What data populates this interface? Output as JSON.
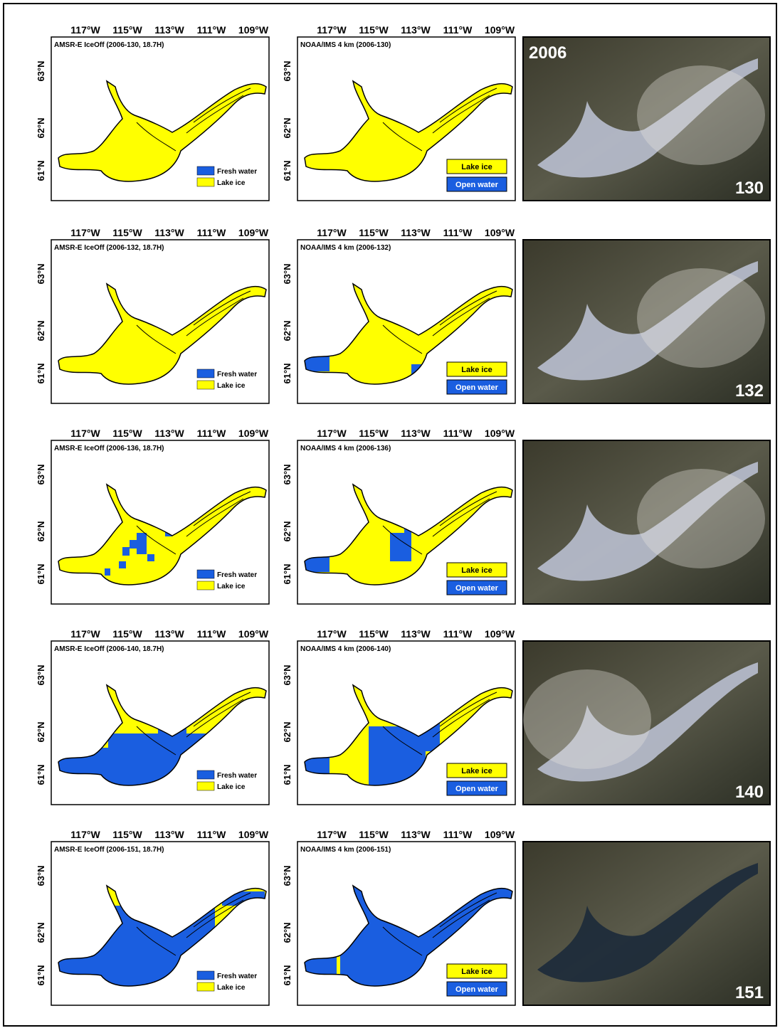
{
  "lon_ticks": [
    "117°W",
    "115°W",
    "113°W",
    "111°W",
    "109°W"
  ],
  "lat_ticks": [
    "63°N",
    "62°N",
    "61°N"
  ],
  "amsr_legend": [
    "Fresh water",
    "Lake ice"
  ],
  "noaa_legend": [
    "Lake ice",
    "Open water"
  ],
  "rows": [
    {
      "amsr_title": "AMSR-E IceOff (2006-130, 18.7H)",
      "noaa_title": "NOAA/IMS 4 km (2006-130)",
      "photo_labels": [
        "2006",
        "130"
      ]
    },
    {
      "amsr_title": "AMSR-E IceOff (2006-132, 18.7H)",
      "noaa_title": "NOAA/IMS 4 km (2006-132)",
      "photo_labels": [
        "132"
      ]
    },
    {
      "amsr_title": "AMSR-E IceOff (2006-136, 18.7H)",
      "noaa_title": "NOAA/IMS 4 km (2006-136)",
      "photo_labels": []
    },
    {
      "amsr_title": "AMSR-E IceOff (2006-140, 18.7H)",
      "noaa_title": "NOAA/IMS 4 km (2006-140)",
      "photo_labels": [
        "140"
      ]
    },
    {
      "amsr_title": "AMSR-E IceOff (2006-151, 18.7H)",
      "noaa_title": "NOAA/IMS 4 km (2006-151)",
      "photo_labels": [
        "151"
      ]
    }
  ]
}
